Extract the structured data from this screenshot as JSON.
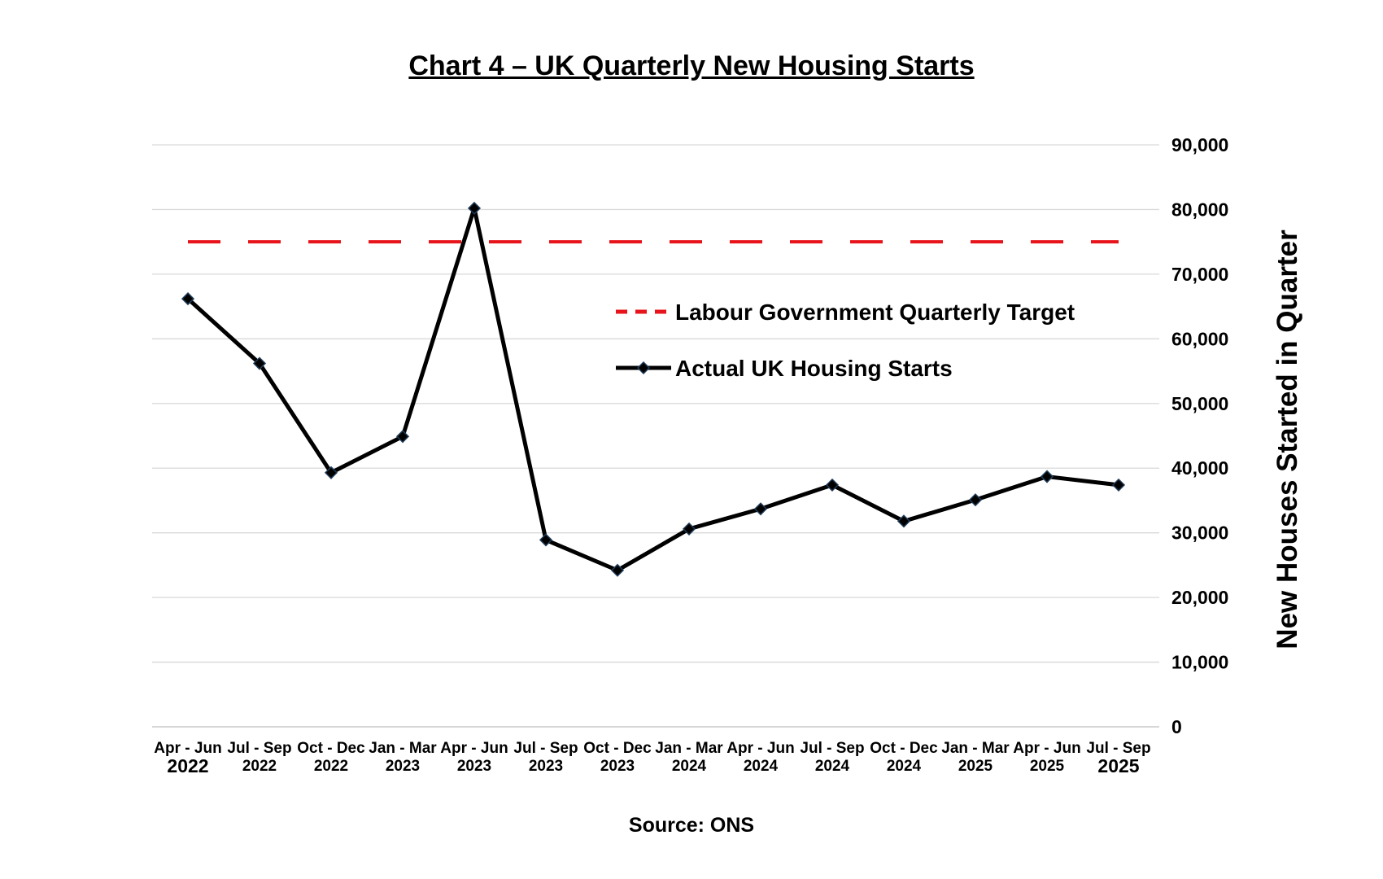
{
  "chart_data": {
    "type": "line",
    "title": "Chart 4 – UK Quarterly New Housing Starts",
    "ylabel": "New Houses Started in Quarter",
    "xlabel": "",
    "source": "Source: ONS",
    "ylim": [
      0,
      90000
    ],
    "yticks": [
      "0",
      "10,000",
      "20,000",
      "30,000",
      "40,000",
      "50,000",
      "60,000",
      "70,000",
      "80,000",
      "90,000"
    ],
    "grid": true,
    "y_axis_side": "right",
    "legend_position": "upper-right inside plot",
    "categories": [
      {
        "quarter": "Apr - Jun",
        "year": "2022"
      },
      {
        "quarter": "Jul - Sep",
        "year": "2022"
      },
      {
        "quarter": "Oct - Dec",
        "year": "2022"
      },
      {
        "quarter": "Jan - Mar",
        "year": "2023"
      },
      {
        "quarter": "Apr - Jun",
        "year": "2023"
      },
      {
        "quarter": "Jul - Sep",
        "year": "2023"
      },
      {
        "quarter": "Oct - Dec",
        "year": "2023"
      },
      {
        "quarter": "Jan - Mar",
        "year": "2024"
      },
      {
        "quarter": "Apr - Jun",
        "year": "2024"
      },
      {
        "quarter": "Jul - Sep",
        "year": "2024"
      },
      {
        "quarter": "Oct - Dec",
        "year": "2024"
      },
      {
        "quarter": "Jan - Mar",
        "year": "2025"
      },
      {
        "quarter": "Apr - Jun",
        "year": "2025"
      },
      {
        "quarter": "Jul - Sep",
        "year": "2025"
      }
    ],
    "series": [
      {
        "name": "Labour Government Quarterly Target",
        "style": "dashed",
        "color": "#e8141b",
        "values": [
          75000,
          75000,
          75000,
          75000,
          75000,
          75000,
          75000,
          75000,
          75000,
          75000,
          75000,
          75000,
          75000,
          75000
        ]
      },
      {
        "name": "Actual UK Housing Starts",
        "style": "solid-with-diamond-markers",
        "color": "#000000",
        "marker_color": "#1f3b57",
        "values": [
          66200,
          56200,
          39300,
          44900,
          80200,
          28900,
          24200,
          30600,
          33700,
          37400,
          31800,
          35100,
          38700,
          37400
        ]
      }
    ]
  }
}
